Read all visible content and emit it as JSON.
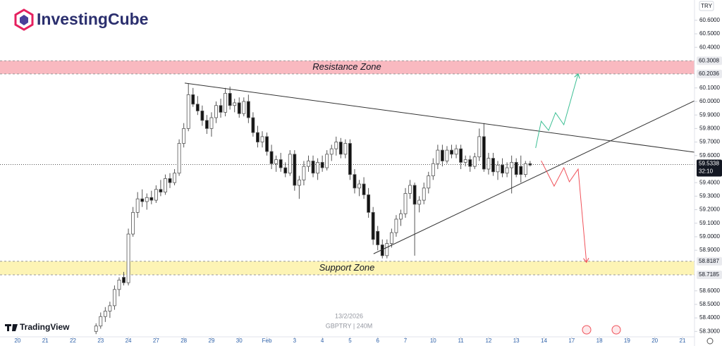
{
  "brand": "InvestingCube",
  "chart_data": {
    "type": "candlestick",
    "currency": "TRY",
    "symbol": "GBPTRY | 240M",
    "date": "13/2/2026",
    "platform": "TradingView",
    "up_color": "#ffffff",
    "down_color": "#131313",
    "grid": false,
    "xlim": [
      -3.8,
      146.6
    ],
    "ylim": [
      58.26,
      60.75
    ],
    "xticks": [
      {
        "value": 0,
        "label": "20"
      },
      {
        "value": 6,
        "label": "21"
      },
      {
        "value": 12,
        "label": "22"
      },
      {
        "value": 18,
        "label": "23"
      },
      {
        "value": 24,
        "label": "24"
      },
      {
        "value": 30,
        "label": "27"
      },
      {
        "value": 36,
        "label": "28"
      },
      {
        "value": 42,
        "label": "29"
      },
      {
        "value": 48,
        "label": "30"
      },
      {
        "value": 54,
        "label": "Feb"
      },
      {
        "value": 60,
        "label": "3"
      },
      {
        "value": 66,
        "label": "4"
      },
      {
        "value": 72,
        "label": "5"
      },
      {
        "value": 78,
        "label": "6"
      },
      {
        "value": 84,
        "label": "7"
      },
      {
        "value": 90,
        "label": "10"
      },
      {
        "value": 96,
        "label": "11"
      },
      {
        "value": 102,
        "label": "12"
      },
      {
        "value": 108,
        "label": "13"
      },
      {
        "value": 114,
        "label": "14"
      },
      {
        "value": 120,
        "label": "17"
      },
      {
        "value": 126,
        "label": "18"
      },
      {
        "value": 132,
        "label": "19"
      },
      {
        "value": 138,
        "label": "20"
      },
      {
        "value": 144,
        "label": "21"
      }
    ],
    "yticks": [
      {
        "value": 60.6,
        "label": "60.6000"
      },
      {
        "value": 60.5,
        "label": "60.5000"
      },
      {
        "value": 60.4,
        "label": "60.4000"
      },
      {
        "value": 60.1,
        "label": "60.1000"
      },
      {
        "value": 60.0,
        "label": "60.0000"
      },
      {
        "value": 59.9,
        "label": "59.9000"
      },
      {
        "value": 59.8,
        "label": "59.8000"
      },
      {
        "value": 59.7,
        "label": "59.7000"
      },
      {
        "value": 59.6,
        "label": "59.6000"
      },
      {
        "value": 59.4,
        "label": "59.4000"
      },
      {
        "value": 59.3,
        "label": "59.3000"
      },
      {
        "value": 59.2,
        "label": "59.2000"
      },
      {
        "value": 59.1,
        "label": "59.1000"
      },
      {
        "value": 59.0,
        "label": "59.0000"
      },
      {
        "value": 58.9,
        "label": "58.9000"
      },
      {
        "value": 58.6,
        "label": "58.6000"
      },
      {
        "value": 58.5,
        "label": "58.5000"
      },
      {
        "value": 58.4,
        "label": "58.4000"
      },
      {
        "value": 58.3,
        "label": "58.3000"
      }
    ],
    "last_price": {
      "value": 59.5338,
      "label": "59.5338"
    },
    "countdown": "32:10",
    "zones": [
      {
        "label": "Resistance Zone",
        "color": "#f9b9c0",
        "top": {
          "value": 60.3008,
          "label": "60.3008"
        },
        "bottom": {
          "value": 60.2036,
          "label": "60.2036"
        }
      },
      {
        "label": "Support Zone",
        "color": "#fdf4b5",
        "top": {
          "value": 58.8187,
          "label": "58.8187"
        },
        "bottom": {
          "value": 58.7185,
          "label": "58.7185"
        }
      }
    ],
    "trendlines": [
      {
        "color": "#333333",
        "x": [
          36.2,
          146.6
        ],
        "y": [
          60.136,
          59.625
        ]
      },
      {
        "color": "#333333",
        "x": [
          77.1,
          146.6
        ],
        "y": [
          58.874,
          60.005
        ]
      }
    ],
    "arrows": [
      {
        "color": "#3dbf94",
        "x": [
          112.2,
          113.4,
          115.0,
          116.5,
          118.3,
          121.4
        ],
        "y": [
          59.656,
          59.854,
          59.786,
          59.917,
          59.828,
          60.204
        ]
      },
      {
        "color": "#f0525a",
        "x": [
          113.4,
          116.2,
          118.3,
          119.5,
          121.4,
          123.2
        ],
        "y": [
          59.562,
          59.374,
          59.51,
          59.406,
          59.5,
          58.811
        ]
      }
    ],
    "candles": [
      [
        17,
        58.3,
        58.36,
        58.28,
        58.34
      ],
      [
        18,
        58.34,
        58.44,
        58.32,
        58.41
      ],
      [
        19,
        58.41,
        58.48,
        58.37,
        58.45
      ],
      [
        20,
        58.45,
        58.52,
        58.4,
        58.49
      ],
      [
        21,
        58.49,
        58.64,
        58.46,
        58.61
      ],
      [
        22,
        58.61,
        58.7,
        58.56,
        58.68
      ],
      [
        23,
        58.7,
        58.74,
        58.64,
        58.66
      ],
      [
        24,
        58.66,
        59.06,
        58.64,
        59.02
      ],
      [
        25,
        59.02,
        59.22,
        59.0,
        59.18
      ],
      [
        26,
        59.18,
        59.33,
        59.14,
        59.28
      ],
      [
        27,
        59.28,
        59.35,
        59.22,
        59.26
      ],
      [
        28,
        59.26,
        59.32,
        59.2,
        59.29
      ],
      [
        29,
        59.29,
        59.34,
        59.24,
        59.27
      ],
      [
        30,
        59.27,
        59.38,
        59.25,
        59.35
      ],
      [
        31,
        59.35,
        59.42,
        59.3,
        59.33
      ],
      [
        32,
        59.33,
        59.46,
        59.31,
        59.43
      ],
      [
        33,
        59.43,
        59.47,
        59.36,
        59.4
      ],
      [
        34,
        59.4,
        59.5,
        59.38,
        59.47
      ],
      [
        35,
        59.47,
        59.72,
        59.45,
        59.69
      ],
      [
        36,
        59.69,
        59.84,
        59.66,
        59.8
      ],
      [
        37,
        59.8,
        60.13,
        59.78,
        60.05
      ],
      [
        38,
        60.05,
        60.1,
        59.96,
        59.98
      ],
      [
        39,
        59.98,
        60.04,
        59.9,
        59.93
      ],
      [
        40,
        59.93,
        59.97,
        59.82,
        59.86
      ],
      [
        41,
        59.86,
        59.9,
        59.76,
        59.8
      ],
      [
        42,
        59.8,
        59.92,
        59.74,
        59.88
      ],
      [
        43,
        59.88,
        60.0,
        59.84,
        59.97
      ],
      [
        44,
        59.97,
        60.02,
        59.88,
        59.92
      ],
      [
        45,
        59.92,
        60.1,
        59.89,
        60.06
      ],
      [
        46,
        60.06,
        60.11,
        59.94,
        59.97
      ],
      [
        47,
        59.97,
        60.02,
        59.92,
        59.99
      ],
      [
        48,
        59.99,
        60.03,
        59.88,
        59.91
      ],
      [
        49,
        59.91,
        60.03,
        59.89,
        60.0
      ],
      [
        50,
        60.0,
        60.05,
        59.84,
        59.88
      ],
      [
        51,
        59.88,
        59.92,
        59.74,
        59.77
      ],
      [
        52,
        59.77,
        59.82,
        59.66,
        59.7
      ],
      [
        53,
        59.7,
        59.78,
        59.66,
        59.74
      ],
      [
        54,
        59.74,
        59.77,
        59.6,
        59.63
      ],
      [
        55,
        59.63,
        59.68,
        59.5,
        59.54
      ],
      [
        56,
        59.54,
        59.6,
        59.48,
        59.57
      ],
      [
        57,
        59.57,
        59.62,
        59.48,
        59.51
      ],
      [
        58,
        59.51,
        59.55,
        59.44,
        59.47
      ],
      [
        59,
        59.47,
        59.64,
        59.45,
        59.61
      ],
      [
        60,
        59.61,
        59.64,
        59.34,
        59.38
      ],
      [
        61,
        59.38,
        59.45,
        59.28,
        59.42
      ],
      [
        62,
        59.42,
        59.56,
        59.38,
        59.52
      ],
      [
        63,
        59.52,
        59.6,
        59.48,
        59.56
      ],
      [
        64,
        59.56,
        59.6,
        59.44,
        59.47
      ],
      [
        65,
        59.47,
        59.58,
        59.42,
        59.55
      ],
      [
        66,
        59.55,
        59.6,
        59.48,
        59.51
      ],
      [
        67,
        59.51,
        59.64,
        59.49,
        59.61
      ],
      [
        68,
        59.61,
        59.68,
        59.56,
        59.65
      ],
      [
        69,
        59.65,
        59.74,
        59.6,
        59.7
      ],
      [
        70,
        59.7,
        59.73,
        59.58,
        59.61
      ],
      [
        71,
        59.61,
        59.72,
        59.58,
        59.69
      ],
      [
        72,
        59.69,
        59.72,
        59.42,
        59.46
      ],
      [
        73,
        59.46,
        59.5,
        59.32,
        59.36
      ],
      [
        74,
        59.36,
        59.42,
        59.3,
        59.39
      ],
      [
        75,
        59.39,
        59.44,
        59.28,
        59.31
      ],
      [
        76,
        59.31,
        59.36,
        59.14,
        59.18
      ],
      [
        77,
        59.18,
        59.22,
        58.94,
        58.98
      ],
      [
        78,
        59.04,
        59.08,
        58.9,
        58.94
      ],
      [
        79,
        58.94,
        58.98,
        58.84,
        58.86
      ],
      [
        80,
        58.86,
        58.98,
        58.84,
        58.95
      ],
      [
        81,
        58.95,
        59.06,
        58.92,
        59.03
      ],
      [
        82,
        59.03,
        59.16,
        59.0,
        59.13
      ],
      [
        83,
        59.13,
        59.2,
        59.08,
        59.17
      ],
      [
        84,
        59.17,
        59.36,
        59.14,
        59.32
      ],
      [
        85,
        59.32,
        59.42,
        59.28,
        59.38
      ],
      [
        86,
        59.38,
        59.4,
        58.86,
        59.24
      ],
      [
        87,
        59.24,
        59.3,
        59.18,
        59.27
      ],
      [
        88,
        59.27,
        59.4,
        59.24,
        59.36
      ],
      [
        89,
        59.36,
        59.48,
        59.32,
        59.45
      ],
      [
        90,
        59.45,
        59.58,
        59.42,
        59.54
      ],
      [
        91,
        59.54,
        59.68,
        59.5,
        59.64
      ],
      [
        92,
        59.64,
        59.68,
        59.52,
        59.56
      ],
      [
        93,
        59.56,
        59.67,
        59.54,
        59.64
      ],
      [
        94,
        59.64,
        59.68,
        59.58,
        59.61
      ],
      [
        95,
        59.61,
        59.68,
        59.58,
        59.65
      ],
      [
        96,
        59.65,
        59.68,
        59.5,
        59.55
      ],
      [
        97,
        59.55,
        59.6,
        59.52,
        59.57
      ],
      [
        98,
        59.57,
        59.6,
        59.48,
        59.52
      ],
      [
        99,
        59.52,
        59.62,
        59.5,
        59.59
      ],
      [
        100,
        59.59,
        59.8,
        59.56,
        59.74
      ],
      [
        101,
        59.74,
        59.84,
        59.48,
        59.5
      ],
      [
        102,
        59.5,
        59.62,
        59.46,
        59.58
      ],
      [
        103,
        59.58,
        59.62,
        59.45,
        59.48
      ],
      [
        104,
        59.48,
        59.56,
        59.42,
        59.53
      ],
      [
        105,
        59.53,
        59.58,
        59.44,
        59.47
      ],
      [
        106,
        59.47,
        59.55,
        59.44,
        59.51
      ],
      [
        107,
        59.51,
        59.6,
        59.32,
        59.55
      ],
      [
        108,
        59.55,
        59.58,
        59.44,
        59.46
      ],
      [
        109,
        59.52,
        59.6,
        59.4,
        59.46
      ],
      [
        110,
        59.46,
        59.56,
        59.44,
        59.54
      ],
      [
        111,
        59.54,
        59.56,
        59.52,
        59.53
      ]
    ]
  }
}
